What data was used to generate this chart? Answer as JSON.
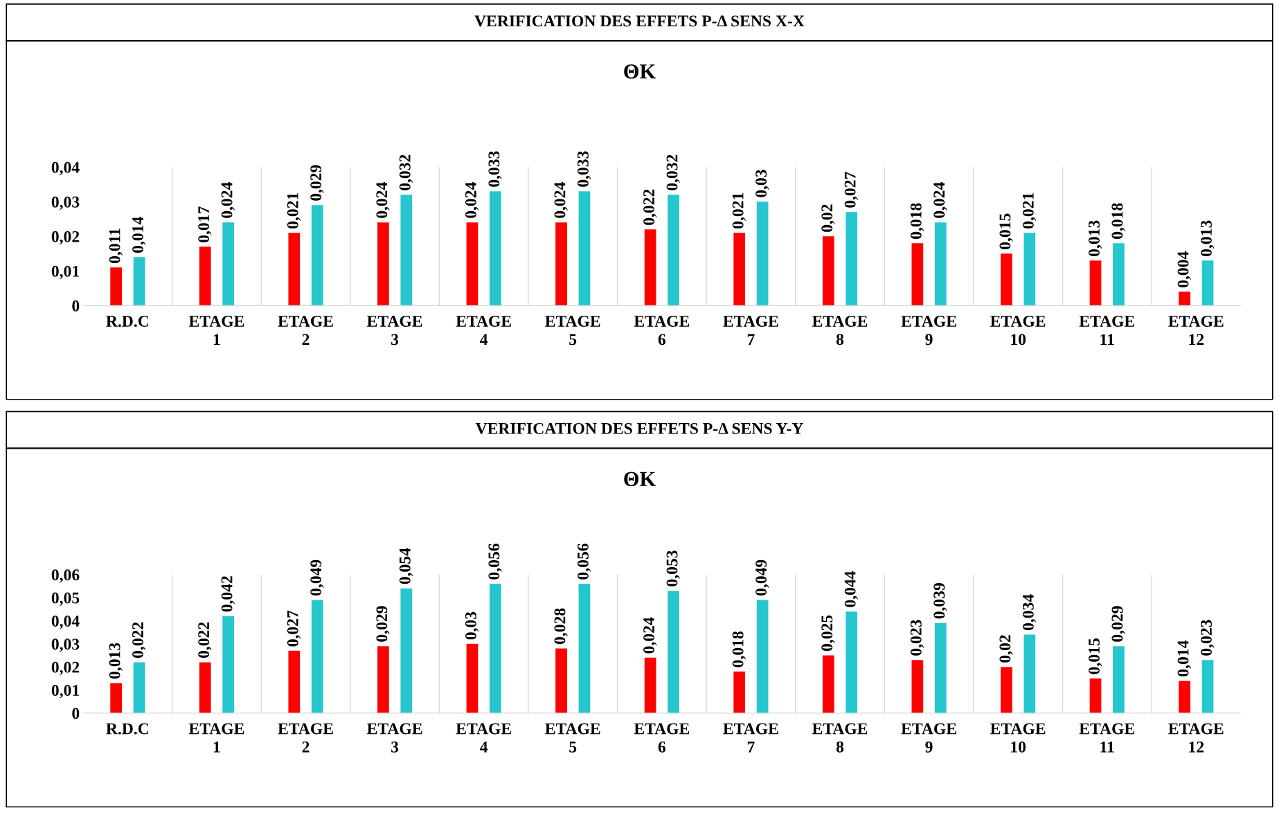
{
  "chart_data": [
    {
      "type": "bar",
      "title": "VERIFICATION DES EFFETS P-Δ SENS X-X",
      "subtitle": "ΘK",
      "categories": [
        "R.D.C",
        "ETAGE 1",
        "ETAGE 2",
        "ETAGE 3",
        "ETAGE 4",
        "ETAGE 5",
        "ETAGE 6",
        "ETAGE 7",
        "ETAGE 8",
        "ETAGE 9",
        "ETAGE 10",
        "ETAGE 11",
        "ETAGE 12"
      ],
      "series": [
        {
          "color": "#ff0000",
          "values": [
            0.011,
            0.017,
            0.021,
            0.024,
            0.024,
            0.024,
            0.022,
            0.021,
            0.02,
            0.018,
            0.015,
            0.013,
            0.004
          ],
          "value_labels": [
            "0,011",
            "0,017",
            "0,021",
            "0,024",
            "0,024",
            "0,024",
            "0,022",
            "0,021",
            "0,02",
            "0,018",
            "0,015",
            "0,013",
            "0,004"
          ]
        },
        {
          "color": "#26c6cf",
          "values": [
            0.014,
            0.024,
            0.029,
            0.032,
            0.033,
            0.033,
            0.032,
            0.03,
            0.027,
            0.024,
            0.021,
            0.018,
            0.013
          ],
          "value_labels": [
            "0,014",
            "0,024",
            "0,029",
            "0,032",
            "0,033",
            "0,033",
            "0,032",
            "0,03",
            "0,027",
            "0,024",
            "0,021",
            "0,018",
            "0,013"
          ]
        }
      ],
      "ylim": [
        0,
        0.04
      ],
      "yticks": [
        {
          "value": 0,
          "label": "0"
        },
        {
          "value": 0.01,
          "label": "0,01"
        },
        {
          "value": 0.02,
          "label": "0,02"
        },
        {
          "value": 0.03,
          "label": "0,03"
        },
        {
          "value": 0.04,
          "label": "0,04"
        }
      ],
      "grid": "x"
    },
    {
      "type": "bar",
      "title": "VERIFICATION DES EFFETS P-Δ SENS Y-Y",
      "subtitle": "ΘK",
      "categories": [
        "R.D.C",
        "ETAGE 1",
        "ETAGE 2",
        "ETAGE 3",
        "ETAGE 4",
        "ETAGE 5",
        "ETAGE 6",
        "ETAGE 7",
        "ETAGE 8",
        "ETAGE 9",
        "ETAGE 10",
        "ETAGE 11",
        "ETAGE 12"
      ],
      "series": [
        {
          "color": "#ff0000",
          "values": [
            0.013,
            0.022,
            0.027,
            0.029,
            0.03,
            0.028,
            0.024,
            0.018,
            0.025,
            0.023,
            0.02,
            0.015,
            0.014
          ],
          "value_labels": [
            "0,013",
            "0,022",
            "0,027",
            "0,029",
            "0,03",
            "0,028",
            "0,024",
            "0,018",
            "0,025",
            "0,023",
            "0,02",
            "0,015",
            "0,014"
          ]
        },
        {
          "color": "#26c6cf",
          "values": [
            0.022,
            0.042,
            0.049,
            0.054,
            0.056,
            0.056,
            0.053,
            0.049,
            0.044,
            0.039,
            0.034,
            0.029,
            0.023
          ],
          "value_labels": [
            "0,022",
            "0,042",
            "0,049",
            "0,054",
            "0,056",
            "0,056",
            "0,053",
            "0,049",
            "0,044",
            "0,039",
            "0,034",
            "0,029",
            "0,023"
          ]
        }
      ],
      "ylim": [
        0,
        0.06
      ],
      "yticks": [
        {
          "value": 0,
          "label": "0"
        },
        {
          "value": 0.01,
          "label": "0,01"
        },
        {
          "value": 0.02,
          "label": "0,02"
        },
        {
          "value": 0.03,
          "label": "0,03"
        },
        {
          "value": 0.04,
          "label": "0,04"
        },
        {
          "value": 0.05,
          "label": "0,05"
        },
        {
          "value": 0.06,
          "label": "0,06"
        }
      ],
      "grid": "x"
    }
  ]
}
